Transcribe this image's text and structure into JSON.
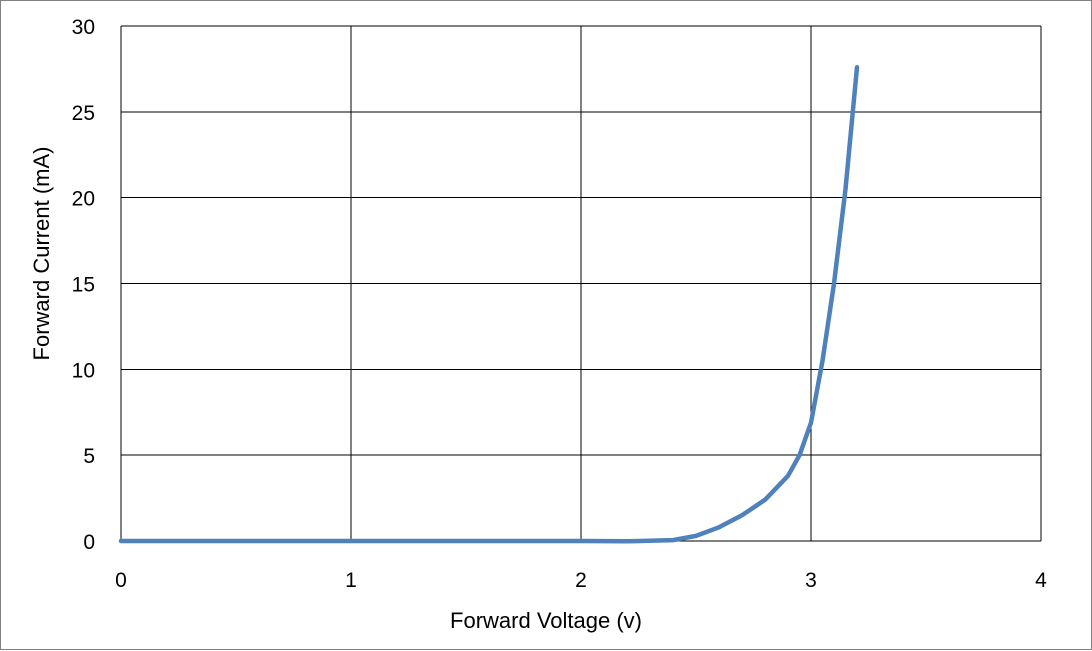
{
  "chart_data": {
    "type": "line",
    "title": "",
    "xlabel": "Forward Voltage (v)",
    "ylabel": "Forward Current (mA)",
    "xlim": [
      0,
      4
    ],
    "ylim": [
      0,
      30
    ],
    "xticks": [
      0,
      1,
      2,
      3,
      4
    ],
    "yticks": [
      0,
      5,
      10,
      15,
      20,
      25,
      30
    ],
    "grid": true,
    "legend": "none",
    "series_color": "#4f81bd",
    "series": [
      {
        "x": [
          0,
          0.5,
          1.0,
          1.5,
          2.0,
          2.2,
          2.4,
          2.5,
          2.6,
          2.7,
          2.8,
          2.9,
          2.95,
          3.0,
          3.05,
          3.1,
          3.15,
          3.2
        ],
        "y": [
          0,
          0,
          0,
          0,
          0,
          -0.02,
          0.05,
          0.3,
          0.8,
          1.5,
          2.4,
          3.8,
          5.0,
          6.9,
          10.5,
          15.0,
          20.5,
          27.6
        ]
      }
    ]
  }
}
